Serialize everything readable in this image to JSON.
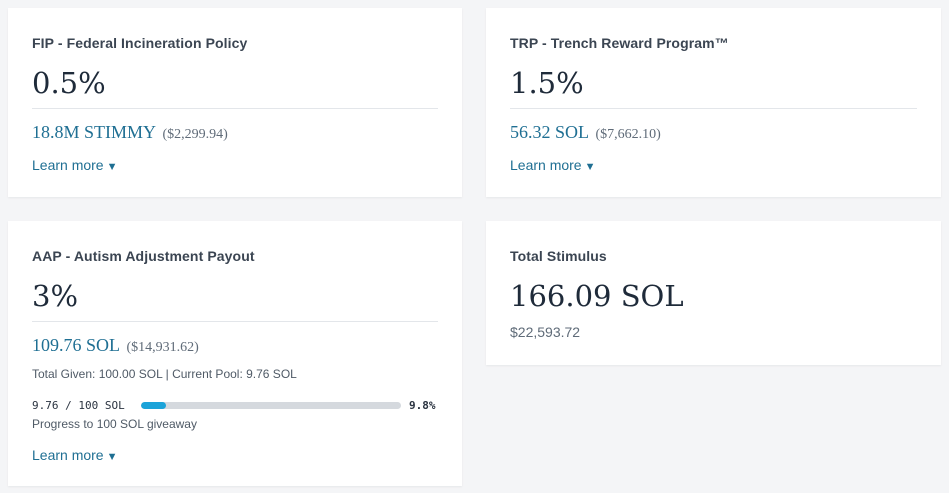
{
  "cards": {
    "fip": {
      "title": "FIP - Federal Incineration Policy",
      "percent": "0.5%",
      "amount": "18.8M STIMMY",
      "amount_usd": "($2,299.94)",
      "learn_more": "Learn more",
      "caret": "▼"
    },
    "trp": {
      "title": "TRP - Trench Reward Program™",
      "percent": "1.5%",
      "amount": "56.32 SOL",
      "amount_usd": "($7,662.10)",
      "learn_more": "Learn more",
      "caret": "▼"
    },
    "aap": {
      "title": "AAP - Autism Adjustment Payout",
      "percent": "3%",
      "amount": "109.76 SOL",
      "amount_usd": "($14,931.62)",
      "sub_info": "Total Given: 100.00 SOL | Current Pool: 9.76 SOL",
      "progress": {
        "label": "9.76 / 100 SOL",
        "fraction": 0.098,
        "percent_label": "9.8%",
        "caption": "Progress to 100 SOL giveaway"
      },
      "learn_more": "Learn more",
      "caret": "▼"
    },
    "total": {
      "title": "Total Stimulus",
      "value": "166.09 SOL",
      "value_usd": "$22,593.72"
    }
  },
  "colors": {
    "accent": "#1f6f93",
    "progress_fill": "#1ba3d9",
    "progress_track": "#d5d9de"
  }
}
